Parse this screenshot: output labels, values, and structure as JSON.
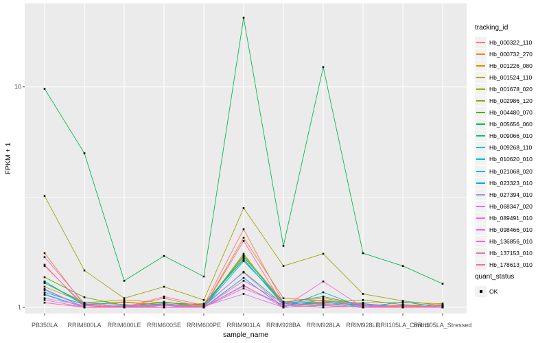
{
  "panel": {
    "background": "#EBEBEB",
    "gridline_color": "#FFFFFF",
    "tick_color": "#333333",
    "tick_label_color": "#4D4D4D",
    "legend_key_background": "#F2F2F2"
  },
  "axes": {
    "x_title": "sample_name",
    "y_title": "FPKM + 1",
    "y_tick_values": [
      1,
      10
    ],
    "y_tick_labels": [
      "1",
      "10"
    ],
    "y_minor_values": [
      3.1623
    ]
  },
  "chart_data": {
    "type": "line",
    "y_scale": "log10",
    "xlabel": "sample_name",
    "ylabel": "FPKM + 1",
    "ylim": [
      0.94,
      24
    ],
    "grid": "on",
    "legend_position": "right",
    "legend_title": "tracking_id",
    "point_marker": {
      "shape": "square",
      "color": "#000000",
      "size": 2.6
    },
    "x_categories": [
      "PB350LA",
      "RRIM600LA",
      "RRIM600LE",
      "RRIM600SE",
      "RRIM600PE",
      "RRIM901LA",
      "RRIM928BA",
      "RRIM928LA",
      "RRIM928LE",
      "RRII105LA_Control",
      "RRII105LA_Stressed"
    ],
    "series": [
      {
        "name": "Hb_000322_110",
        "color": "#F8766D",
        "values": [
          1.56,
          1.0,
          1.0,
          1.12,
          1.02,
          2.26,
          1.05,
          1.04,
          1.0,
          1.02,
          1.0
        ]
      },
      {
        "name": "Hb_000732_270",
        "color": "#EA8331",
        "values": [
          1.76,
          1.02,
          1.05,
          1.03,
          1.0,
          2.07,
          1.1,
          1.07,
          1.02,
          1.0,
          1.0
        ]
      },
      {
        "name": "Hb_001226_080",
        "color": "#D89000",
        "values": [
          1.24,
          1.05,
          1.08,
          1.05,
          1.02,
          1.72,
          1.06,
          1.1,
          1.03,
          1.02,
          1.03
        ]
      },
      {
        "name": "Hb_001524_110",
        "color": "#C09B00",
        "values": [
          1.31,
          1.03,
          1.06,
          1.02,
          1.04,
          1.64,
          1.04,
          1.06,
          1.05,
          1.05,
          1.04
        ]
      },
      {
        "name": "Hb_001678_020",
        "color": "#A3A500",
        "values": [
          3.2,
          1.47,
          1.1,
          1.24,
          1.08,
          2.82,
          1.54,
          1.75,
          1.15,
          1.07,
          1.02
        ]
      },
      {
        "name": "Hb_002986_120",
        "color": "#7CAE00",
        "values": [
          1.29,
          1.04,
          1.0,
          1.06,
          1.0,
          1.75,
          1.02,
          1.05,
          1.08,
          1.03,
          1.0
        ]
      },
      {
        "name": "Hb_004480_070",
        "color": "#39B600",
        "values": [
          1.37,
          1.11,
          1.02,
          1.05,
          1.03,
          1.69,
          1.05,
          1.12,
          1.02,
          1.0,
          1.02
        ]
      },
      {
        "name": "Hb_005656_060",
        "color": "#00BB4E",
        "values": [
          9.8,
          5.0,
          1.32,
          1.71,
          1.38,
          20.6,
          1.9,
          12.3,
          1.76,
          1.54,
          1.28
        ]
      },
      {
        "name": "Hb_009066_010",
        "color": "#00C087",
        "values": [
          1.14,
          1.0,
          1.02,
          1.0,
          1.01,
          1.45,
          1.03,
          1.02,
          1.0,
          1.01,
          1.0
        ]
      },
      {
        "name": "Hb_009268_110",
        "color": "#00C0B8",
        "values": [
          1.31,
          1.02,
          1.0,
          1.03,
          1.0,
          1.7,
          1.04,
          1.05,
          1.02,
          1.0,
          1.01
        ]
      },
      {
        "name": "Hb_010620_010",
        "color": "#00BCD8",
        "values": [
          1.29,
          1.05,
          1.03,
          1.0,
          1.02,
          1.66,
          1.02,
          1.08,
          1.0,
          1.02,
          1.0
        ]
      },
      {
        "name": "Hb_021068_020",
        "color": "#00B0F6",
        "values": [
          1.21,
          1.0,
          1.0,
          1.04,
          1.0,
          1.62,
          1.06,
          1.03,
          1.04,
          1.0,
          1.02
        ]
      },
      {
        "name": "Hb_023323_010",
        "color": "#00A5FF",
        "values": [
          1.17,
          1.03,
          1.01,
          1.0,
          1.0,
          1.36,
          1.0,
          1.17,
          1.0,
          1.06,
          1.0
        ]
      },
      {
        "name": "Hb_027394_010",
        "color": "#9590FF",
        "values": [
          1.15,
          1.0,
          1.02,
          1.02,
          1.0,
          1.25,
          1.02,
          1.0,
          1.01,
          1.0,
          1.0
        ]
      },
      {
        "name": "Hb_068347_020",
        "color": "#C77CFF",
        "values": [
          1.1,
          1.02,
          1.0,
          1.0,
          1.01,
          1.15,
          1.0,
          1.02,
          1.0,
          1.0,
          1.01
        ]
      },
      {
        "name": "Hb_089491_010",
        "color": "#E76BF3",
        "values": [
          1.08,
          1.0,
          1.01,
          1.03,
          1.0,
          1.22,
          1.03,
          1.0,
          1.02,
          1.0,
          1.0
        ]
      },
      {
        "name": "Hb_098466_010",
        "color": "#FA62DB",
        "values": [
          1.69,
          1.04,
          1.0,
          1.0,
          1.02,
          1.44,
          1.0,
          1.31,
          1.0,
          1.02,
          1.0
        ]
      },
      {
        "name": "Hb_136856_010",
        "color": "#FF61C7",
        "values": [
          1.2,
          1.0,
          1.02,
          1.0,
          1.0,
          1.32,
          1.05,
          1.08,
          1.03,
          1.0,
          1.02
        ]
      },
      {
        "name": "Hb_137153_010",
        "color": "#FF689E",
        "values": [
          1.54,
          1.02,
          1.0,
          1.1,
          1.0,
          2.0,
          1.02,
          1.04,
          1.0,
          1.0,
          1.0
        ]
      },
      {
        "name": "Hb_178613_010",
        "color": "#FF6C91",
        "values": [
          1.05,
          1.0,
          1.0,
          1.02,
          1.0,
          1.26,
          1.0,
          1.02,
          1.0,
          1.01,
          1.0
        ]
      }
    ],
    "legend2": {
      "title": "quant_status",
      "items": [
        {
          "label": "OK",
          "marker": "black-square"
        }
      ]
    }
  }
}
